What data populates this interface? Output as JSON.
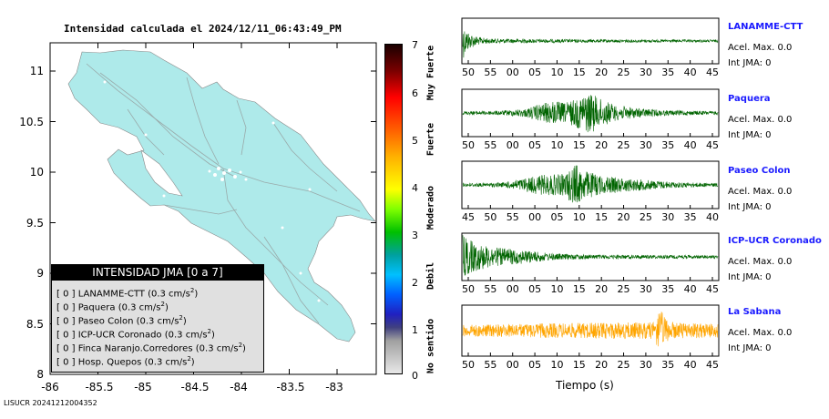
{
  "map": {
    "title": "Intensidad calculada el 2024/12/11_06:43:49_PM",
    "footer": "LISUCR 20241212004352",
    "lon_ticks": [
      "-86",
      "-85.5",
      "-85",
      "-84.5",
      "-84",
      "-83.5",
      "-83"
    ],
    "lat_ticks": [
      "11",
      "10.5",
      "10",
      "9.5",
      "9",
      "8.5",
      "8"
    ],
    "land_color": "#aeeaea"
  },
  "colorbar": {
    "ticks": [
      "7",
      "6",
      "5",
      "4",
      "3",
      "2",
      "1",
      "0"
    ],
    "categories": [
      "Muy Fuerte",
      "Fuerte",
      "Moderado",
      "Debil",
      "No sentido"
    ]
  },
  "legend": {
    "title": "INTENSIDAD JMA [0 a 7]",
    "items": [
      {
        "value": "[ 0 ]",
        "name": "LANAMME-CTT",
        "acc": "(0.3 cm/s"
      },
      {
        "value": "[ 0 ]",
        "name": "Paquera",
        "acc": "(0.3 cm/s"
      },
      {
        "value": "[ 0 ]",
        "name": "Paseo Colon",
        "acc": "(0.3 cm/s"
      },
      {
        "value": "[ 0 ]",
        "name": "ICP-UCR Coronado",
        "acc": "(0.3 cm/s"
      },
      {
        "value": "[ 0 ]",
        "name": "Finca Naranjo.Corredores",
        "acc": "(0.3 cm/s"
      },
      {
        "value": "[ 0 ]",
        "name": "Hosp. Quepos",
        "acc": "(0.3 cm/s"
      }
    ]
  },
  "chart_data": [
    {
      "type": "line",
      "station": "LANAMME-CTT",
      "acel_max": "Acel. Max. 0.0",
      "int_jma": "Int JMA: 0",
      "x_ticks": [
        "50",
        "55",
        "00",
        "05",
        "10",
        "15",
        "20",
        "25",
        "30",
        "35",
        "40",
        "45"
      ],
      "color": "#006400",
      "envelope": [
        [
          0,
          0.9
        ],
        [
          1,
          0.6
        ],
        [
          3,
          0.35
        ],
        [
          6,
          0.2
        ],
        [
          10,
          0.12
        ],
        [
          20,
          0.1
        ],
        [
          40,
          0.08
        ],
        [
          100,
          0.06
        ]
      ]
    },
    {
      "type": "line",
      "station": "Paquera",
      "acel_max": "Acel. Max. 0.0",
      "int_jma": "Int JMA: 0",
      "x_ticks": [
        "50",
        "55",
        "00",
        "05",
        "10",
        "15",
        "20",
        "25",
        "30",
        "35",
        "40",
        "45"
      ],
      "color": "#006400",
      "envelope": [
        [
          0,
          0.08
        ],
        [
          15,
          0.1
        ],
        [
          25,
          0.2
        ],
        [
          30,
          0.4
        ],
        [
          36,
          0.55
        ],
        [
          40,
          0.45
        ],
        [
          50,
          0.95
        ],
        [
          53,
          0.7
        ],
        [
          60,
          0.35
        ],
        [
          70,
          0.2
        ],
        [
          80,
          0.12
        ],
        [
          100,
          0.08
        ]
      ]
    },
    {
      "type": "line",
      "station": "Paseo Colon",
      "acel_max": "Acel. Max. 0.0",
      "int_jma": "Int JMA: 0",
      "x_ticks": [
        "45",
        "50",
        "55",
        "00",
        "05",
        "10",
        "15",
        "20",
        "25",
        "30",
        "35",
        "40"
      ],
      "color": "#006400",
      "envelope": [
        [
          0,
          0.08
        ],
        [
          15,
          0.1
        ],
        [
          22,
          0.25
        ],
        [
          30,
          0.45
        ],
        [
          40,
          0.5
        ],
        [
          44,
          1.0
        ],
        [
          47,
          0.7
        ],
        [
          55,
          0.4
        ],
        [
          65,
          0.3
        ],
        [
          75,
          0.2
        ],
        [
          85,
          0.12
        ],
        [
          100,
          0.08
        ]
      ]
    },
    {
      "type": "line",
      "station": "ICP-UCR Coronado",
      "acel_max": "Acel. Max. 0.0",
      "int_jma": "Int JMA: 0",
      "x_ticks": [
        "50",
        "55",
        "00",
        "05",
        "10",
        "15",
        "20",
        "25",
        "30",
        "35",
        "40",
        "45"
      ],
      "color": "#006400",
      "envelope": [
        [
          0,
          1.0
        ],
        [
          4,
          0.7
        ],
        [
          8,
          0.55
        ],
        [
          15,
          0.4
        ],
        [
          25,
          0.3
        ],
        [
          35,
          0.15
        ],
        [
          50,
          0.1
        ],
        [
          100,
          0.07
        ]
      ]
    },
    {
      "type": "line",
      "station": "La Sabana",
      "acel_max": "Acel. Max. 0.0",
      "int_jma": "Int JMA: 0",
      "x_ticks": [
        "50",
        "55",
        "00",
        "05",
        "10",
        "15",
        "20",
        "25",
        "30",
        "35",
        "40",
        "45"
      ],
      "xlabel": "Tiempo (s)",
      "color": "#ffa500",
      "envelope": [
        [
          0,
          0.25
        ],
        [
          30,
          0.3
        ],
        [
          60,
          0.35
        ],
        [
          75,
          0.35
        ],
        [
          77,
          1.0
        ],
        [
          79,
          0.6
        ],
        [
          82,
          0.35
        ],
        [
          100,
          0.3
        ]
      ]
    }
  ]
}
